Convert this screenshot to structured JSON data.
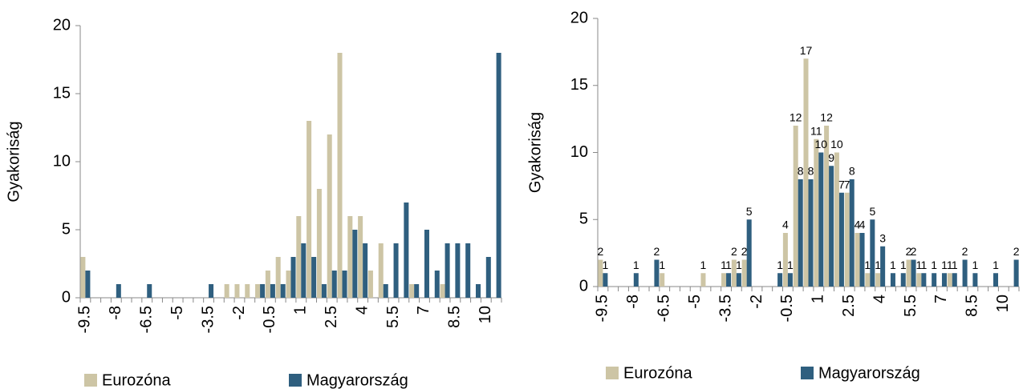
{
  "chart_data": [
    {
      "type": "bar",
      "y_label": "Gyakoriság",
      "data_labels": false,
      "legend": "bottom-left",
      "categories": [
        "-9.5",
        null,
        null,
        "-8",
        null,
        null,
        "-6.5",
        null,
        null,
        "-5",
        null,
        null,
        "-3.5",
        null,
        null,
        "-2",
        null,
        null,
        "-0.5",
        null,
        null,
        "1",
        null,
        null,
        "2.5",
        null,
        null,
        "4",
        null,
        null,
        "5.5",
        null,
        null,
        "7",
        null,
        null,
        "8.5",
        null,
        null,
        "10",
        null
      ],
      "series": [
        {
          "name": "Eurozóna",
          "color": "#cdc5a5",
          "values": [
            3,
            0,
            0,
            0,
            0,
            0,
            0,
            0,
            0,
            0,
            0,
            0,
            0,
            0,
            1,
            1,
            1,
            1,
            2,
            3,
            2,
            6,
            13,
            8,
            12,
            18,
            6,
            6,
            2,
            4,
            0,
            0,
            1,
            0,
            0,
            1,
            0,
            0,
            0,
            0,
            0
          ]
        },
        {
          "name": "Magyarország",
          "color": "#2f5f7f",
          "values": [
            2,
            0,
            0,
            1,
            0,
            0,
            1,
            0,
            0,
            0,
            0,
            0,
            1,
            0,
            0,
            0,
            0,
            1,
            1,
            1,
            3,
            4,
            3,
            1,
            2,
            2,
            5,
            4,
            0,
            1,
            4,
            7,
            1,
            5,
            2,
            4,
            4,
            4,
            1,
            3,
            18
          ]
        }
      ],
      "ylim": [
        0,
        20
      ],
      "yticks": [
        0,
        5,
        10,
        15,
        20
      ]
    },
    {
      "type": "bar",
      "y_label": "Gyakoriság",
      "data_labels": true,
      "legend": "bottom-left",
      "categories": [
        "-9.5",
        null,
        null,
        "-8",
        null,
        null,
        "-6.5",
        null,
        null,
        "-5",
        null,
        null,
        "-3.5",
        null,
        null,
        "-2",
        null,
        null,
        "-0.5",
        null,
        null,
        "1",
        null,
        null,
        "2.5",
        null,
        null,
        "4",
        null,
        null,
        "5.5",
        null,
        null,
        "7",
        null,
        null,
        "8.5",
        null,
        null,
        "10",
        null
      ],
      "series": [
        {
          "name": "Eurozóna",
          "color": "#cdc5a5",
          "values": [
            2,
            0,
            0,
            0,
            0,
            0,
            1,
            0,
            0,
            0,
            1,
            0,
            1,
            2,
            2,
            0,
            0,
            0,
            4,
            12,
            17,
            11,
            12,
            10,
            7,
            4,
            1,
            1,
            0,
            0,
            2,
            1,
            0,
            0,
            1,
            0,
            0,
            0,
            0,
            0,
            0
          ]
        },
        {
          "name": "Magyarország",
          "color": "#2f5f7f",
          "values": [
            1,
            0,
            0,
            1,
            0,
            2,
            0,
            0,
            0,
            0,
            0,
            0,
            1,
            1,
            5,
            0,
            0,
            1,
            1,
            8,
            8,
            10,
            9,
            7,
            8,
            4,
            5,
            3,
            1,
            1,
            2,
            1,
            1,
            1,
            1,
            2,
            1,
            0,
            1,
            0,
            2
          ]
        }
      ],
      "ylim": [
        0,
        20
      ],
      "yticks": [
        0,
        5,
        10,
        15,
        20
      ]
    }
  ]
}
